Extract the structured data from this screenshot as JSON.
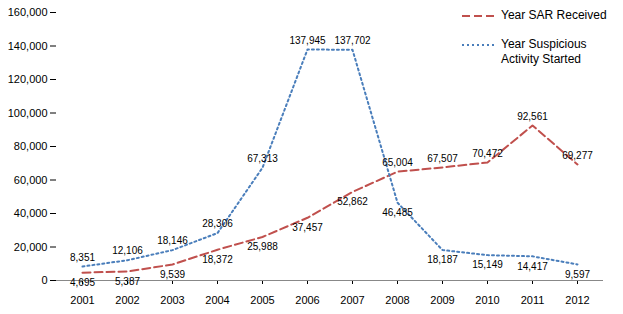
{
  "chart_data": {
    "type": "line",
    "categories": [
      "2001",
      "2002",
      "2003",
      "2004",
      "2005",
      "2006",
      "2007",
      "2008",
      "2009",
      "2010",
      "2011",
      "2012"
    ],
    "series": [
      {
        "name": "Year SAR Received",
        "color": "#c0504d",
        "line_style": "dashed",
        "values": [
          4695,
          5387,
          9539,
          18372,
          25988,
          37457,
          52862,
          65004,
          67507,
          70472,
          92561,
          69277
        ],
        "value_labels": [
          "4,695",
          "5,387",
          "9,539",
          "18,372",
          "25,988",
          "37,457",
          "52,862",
          "65,004",
          "67,507",
          "70,472",
          "92,561",
          "69,277"
        ]
      },
      {
        "name": "Year Suspicious Activity Started",
        "color": "#4a7ebb",
        "line_style": "dotted",
        "values": [
          8351,
          12106,
          18146,
          28306,
          67313,
          137945,
          137702,
          46485,
          18187,
          15149,
          14417,
          9597
        ],
        "value_labels": [
          "8,351",
          "12,106",
          "18,146",
          "28,306",
          "67,313",
          "137,945",
          "137,702",
          "46,485",
          "18,187",
          "15,149",
          "14,417",
          "9,597"
        ]
      }
    ],
    "ylim": [
      0,
      160000
    ],
    "yticks": [
      0,
      {
        "value": 20000,
        "label": "20,000"
      },
      {
        "value": 40000,
        "label": "40,000"
      },
      {
        "value": 60000,
        "label": "60,000"
      },
      {
        "value": 80000,
        "label": "80,000"
      },
      {
        "value": 100000,
        "label": "100,000"
      },
      {
        "value": 120000,
        "label": "120,000"
      },
      {
        "value": 140000,
        "label": "140,000"
      },
      {
        "value": 160000,
        "label": "160,000"
      }
    ],
    "legend": "top-right",
    "data_labels": true,
    "grid": false
  }
}
